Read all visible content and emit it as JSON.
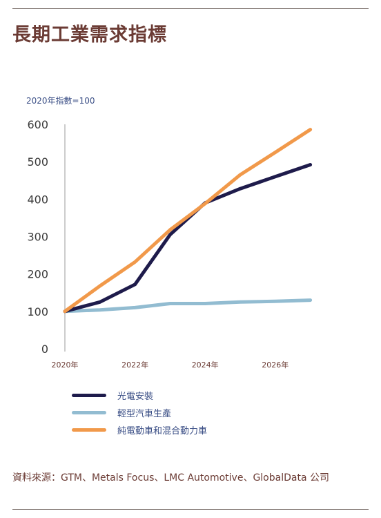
{
  "header": {
    "title": "長期工業需求指標"
  },
  "footer": {
    "source": "資料來源：GTM、Metals Focus、LMC Automotive、GlobalData 公司"
  },
  "chart_data": {
    "type": "line",
    "title": "長期工業需求指標",
    "unit_label": "2020年指數=100",
    "xlabel": "",
    "ylabel": "",
    "x": [
      2020,
      2021,
      2022,
      2023,
      2024,
      2025,
      2026,
      2027
    ],
    "x_ticks": [
      "2020年",
      "2022年",
      "2024年",
      "2026年"
    ],
    "x_tick_values": [
      2020,
      2022,
      2024,
      2026
    ],
    "ylim": [
      0,
      600
    ],
    "y_ticks": [
      0,
      100,
      200,
      300,
      400,
      500,
      600
    ],
    "grid": false,
    "legend": "bottom",
    "series": [
      {
        "name": "光電安裝",
        "color": "#1e1b4b",
        "values": [
          100,
          125,
          172,
          305,
          390,
          428,
          460,
          492
        ]
      },
      {
        "name": "輕型汽車生產",
        "color": "#92bcd1",
        "values": [
          100,
          104,
          110,
          121,
          121,
          125,
          127,
          130
        ]
      },
      {
        "name": "純電動車和混合動力車",
        "color": "#f1994a",
        "values": [
          100,
          168,
          232,
          318,
          388,
          465,
          525,
          586
        ]
      }
    ]
  }
}
